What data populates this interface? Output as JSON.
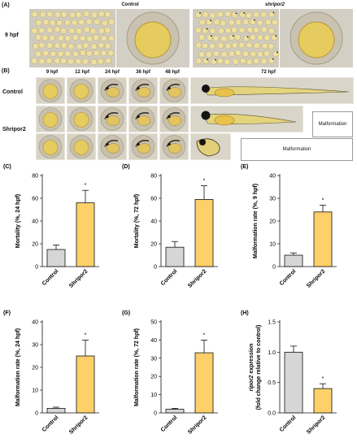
{
  "panelA": {
    "label": "(A)",
    "row_label": "9 hpf",
    "col_labels": [
      "Control",
      "shripor2"
    ]
  },
  "panelB": {
    "label": "(B)",
    "time_labels": [
      "9 hpf",
      "12 hpf",
      "24 hpf",
      "36 hpf",
      "48 hpf",
      "72 hpf"
    ],
    "row_labels": [
      "Control",
      "Shripor2"
    ],
    "malformation_labels": [
      "Malformation",
      "Malformation"
    ]
  },
  "colors": {
    "control_bar": "#d6d6d6",
    "shripor2_bar": "#fdd069",
    "yolk": "#e8cf6a",
    "chorion": "#c9c3b3"
  },
  "chart_data": [
    {
      "panel": "(C)",
      "type": "bar",
      "categories": [
        "Control",
        "Shripor2"
      ],
      "values": [
        15,
        56
      ],
      "errors": [
        4,
        11
      ],
      "ylabel": "Mortality (%, 24 hpf)",
      "ylim": [
        0,
        80
      ],
      "yticks": [
        0,
        20,
        40,
        60,
        80
      ],
      "significance": "*"
    },
    {
      "panel": "(D)",
      "type": "bar",
      "categories": [
        "Control",
        "Shripor2"
      ],
      "values": [
        17,
        59
      ],
      "errors": [
        5,
        12
      ],
      "ylabel": "Mortality (%, 72 hpf)",
      "ylim": [
        0,
        80
      ],
      "yticks": [
        0,
        20,
        40,
        60,
        80
      ],
      "significance": "*"
    },
    {
      "panel": "(E)",
      "type": "bar",
      "categories": [
        "Control",
        "Shripor2"
      ],
      "values": [
        5,
        24
      ],
      "errors": [
        1,
        3
      ],
      "ylabel": "Malformation rate (%, 9 hpf)",
      "ylim": [
        0,
        40
      ],
      "yticks": [
        0,
        10,
        20,
        30,
        40
      ],
      "significance": "*"
    },
    {
      "panel": "(F)",
      "type": "bar",
      "categories": [
        "Control",
        "Shripor2"
      ],
      "values": [
        2,
        25
      ],
      "errors": [
        0.5,
        7
      ],
      "ylabel": "Malformation rate (%, 24 hpf)",
      "ylim": [
        0,
        40
      ],
      "yticks": [
        0,
        10,
        20,
        30,
        40
      ],
      "significance": "*"
    },
    {
      "panel": "(G)",
      "type": "bar",
      "categories": [
        "Control",
        "Shripor2"
      ],
      "values": [
        2,
        33
      ],
      "errors": [
        0.5,
        7
      ],
      "ylabel": "Malformation rate (%, 72 hpf)",
      "ylim": [
        0,
        50
      ],
      "yticks": [
        0,
        10,
        20,
        30,
        40,
        50
      ],
      "significance": "*"
    },
    {
      "panel": "(H)",
      "type": "bar",
      "categories": [
        "Control",
        "Shripor2"
      ],
      "values": [
        1.0,
        0.4
      ],
      "errors": [
        0.1,
        0.08
      ],
      "ylabel_italic": "ripor2",
      "ylabel": " expression",
      "ylabel2": "(fold change relative to control)",
      "ylim": [
        0,
        1.5
      ],
      "yticks": [
        "0.0",
        "0.5",
        "1.0",
        "1.5"
      ],
      "significance": "*"
    }
  ]
}
